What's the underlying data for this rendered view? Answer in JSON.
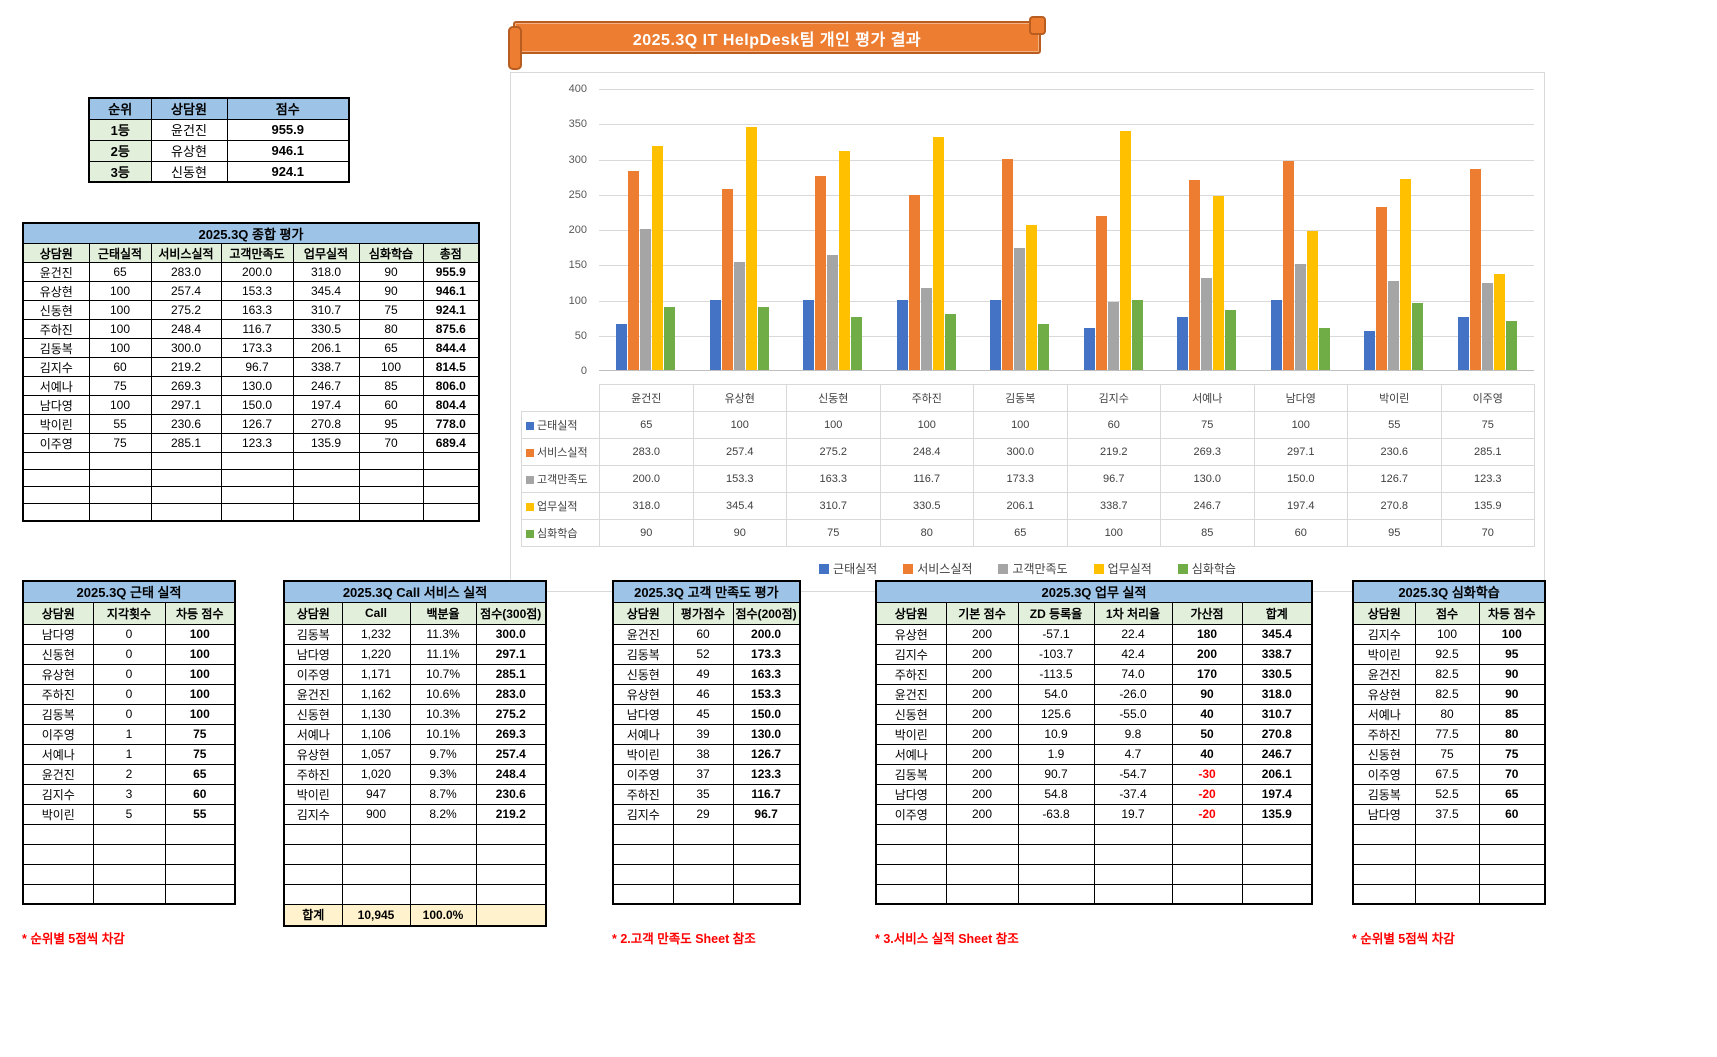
{
  "banner": {
    "title": "2025.3Q IT HelpDesk팀 개인 평가 결과"
  },
  "ranking": {
    "headers": [
      "순위",
      "상담원",
      "점수"
    ],
    "rows": [
      [
        "1등",
        "윤건진",
        "955.9"
      ],
      [
        "2등",
        "유상현",
        "946.1"
      ],
      [
        "3등",
        "신동현",
        "924.1"
      ]
    ]
  },
  "summary": {
    "title": "2025.3Q 종합 평가",
    "headers": [
      "상담원",
      "근태실적",
      "서비스실적",
      "고객만족도",
      "업무실적",
      "심화학습",
      "총점"
    ],
    "rows": [
      [
        "윤건진",
        "65",
        "283.0",
        "200.0",
        "318.0",
        "90",
        "955.9"
      ],
      [
        "유상현",
        "100",
        "257.4",
        "153.3",
        "345.4",
        "90",
        "946.1"
      ],
      [
        "신동현",
        "100",
        "275.2",
        "163.3",
        "310.7",
        "75",
        "924.1"
      ],
      [
        "주하진",
        "100",
        "248.4",
        "116.7",
        "330.5",
        "80",
        "875.6"
      ],
      [
        "김동복",
        "100",
        "300.0",
        "173.3",
        "206.1",
        "65",
        "844.4"
      ],
      [
        "김지수",
        "60",
        "219.2",
        "96.7",
        "338.7",
        "100",
        "814.5"
      ],
      [
        "서예나",
        "75",
        "269.3",
        "130.0",
        "246.7",
        "85",
        "806.0"
      ],
      [
        "남다영",
        "100",
        "297.1",
        "150.0",
        "197.4",
        "60",
        "804.4"
      ],
      [
        "박이린",
        "55",
        "230.6",
        "126.7",
        "270.8",
        "95",
        "778.0"
      ],
      [
        "이주영",
        "75",
        "285.1",
        "123.3",
        "135.9",
        "70",
        "689.4"
      ]
    ],
    "empty_rows": 4
  },
  "chart_data": {
    "type": "bar",
    "title": "",
    "categories": [
      "윤건진",
      "유상현",
      "신동현",
      "주하진",
      "김동복",
      "김지수",
      "서예나",
      "남다영",
      "박이린",
      "이주영"
    ],
    "series": [
      {
        "name": "근태실적",
        "color": "#4472C4",
        "values": [
          65,
          100,
          100,
          100,
          100,
          60,
          75,
          100,
          55,
          75
        ],
        "labels": [
          "65",
          "100",
          "100",
          "100",
          "100",
          "60",
          "75",
          "100",
          "55",
          "75"
        ]
      },
      {
        "name": "서비스실적",
        "color": "#ED7D31",
        "values": [
          283.0,
          257.4,
          275.2,
          248.4,
          300.0,
          219.2,
          269.3,
          297.1,
          230.6,
          285.1
        ],
        "labels": [
          "283.0",
          "257.4",
          "275.2",
          "248.4",
          "300.0",
          "219.2",
          "269.3",
          "297.1",
          "230.6",
          "285.1"
        ]
      },
      {
        "name": "고객만족도",
        "color": "#A5A5A5",
        "values": [
          200.0,
          153.3,
          163.3,
          116.7,
          173.3,
          96.7,
          130.0,
          150.0,
          126.7,
          123.3
        ],
        "labels": [
          "200.0",
          "153.3",
          "163.3",
          "116.7",
          "173.3",
          "96.7",
          "130.0",
          "150.0",
          "126.7",
          "123.3"
        ]
      },
      {
        "name": "업무실적",
        "color": "#FFC000",
        "values": [
          318.0,
          345.4,
          310.7,
          330.5,
          206.1,
          338.7,
          246.7,
          197.4,
          270.8,
          135.9
        ],
        "labels": [
          "318.0",
          "345.4",
          "310.7",
          "330.5",
          "206.1",
          "338.7",
          "246.7",
          "197.4",
          "270.8",
          "135.9"
        ]
      },
      {
        "name": "심화학습",
        "color": "#70AD47",
        "values": [
          90,
          90,
          75,
          80,
          65,
          100,
          85,
          60,
          95,
          70
        ],
        "labels": [
          "90",
          "90",
          "75",
          "80",
          "65",
          "100",
          "85",
          "60",
          "95",
          "70"
        ]
      }
    ],
    "ylim": [
      0,
      400
    ],
    "ytick_step": 50,
    "grid": true,
    "legend_position": "bottom",
    "data_table_shown": true
  },
  "attendance": {
    "title": "2025.3Q 근태 실적",
    "headers": [
      "상담원",
      "지각횟수",
      "차등 점수"
    ],
    "rows": [
      [
        "남다영",
        "0",
        "100"
      ],
      [
        "신동현",
        "0",
        "100"
      ],
      [
        "유상현",
        "0",
        "100"
      ],
      [
        "주하진",
        "0",
        "100"
      ],
      [
        "김동복",
        "0",
        "100"
      ],
      [
        "이주영",
        "1",
        "75"
      ],
      [
        "서예나",
        "1",
        "75"
      ],
      [
        "윤건진",
        "2",
        "65"
      ],
      [
        "김지수",
        "3",
        "60"
      ],
      [
        "박이린",
        "5",
        "55"
      ]
    ],
    "empty_rows": 4,
    "footnote": "* 순위별 5점씩 차감"
  },
  "call": {
    "title": "2025.3Q Call 서비스 실적",
    "headers": [
      "상담원",
      "Call",
      "백분율",
      "점수(300점)"
    ],
    "rows": [
      [
        "김동복",
        "1,232",
        "11.3%",
        "300.0"
      ],
      [
        "남다영",
        "1,220",
        "11.1%",
        "297.1"
      ],
      [
        "이주영",
        "1,171",
        "10.7%",
        "285.1"
      ],
      [
        "윤건진",
        "1,162",
        "10.6%",
        "283.0"
      ],
      [
        "신동현",
        "1,130",
        "10.3%",
        "275.2"
      ],
      [
        "서예나",
        "1,106",
        "10.1%",
        "269.3"
      ],
      [
        "유상현",
        "1,057",
        "9.7%",
        "257.4"
      ],
      [
        "주하진",
        "1,020",
        "9.3%",
        "248.4"
      ],
      [
        "박이린",
        "947",
        "8.7%",
        "230.6"
      ],
      [
        "김지수",
        "900",
        "8.2%",
        "219.2"
      ]
    ],
    "empty_rows": 4,
    "total_row": [
      "합계",
      "10,945",
      "100.0%",
      ""
    ]
  },
  "satisfaction": {
    "title": "2025.3Q 고객 만족도 평가",
    "headers": [
      "상담원",
      "평가점수",
      "점수(200점)"
    ],
    "rows": [
      [
        "윤건진",
        "60",
        "200.0"
      ],
      [
        "김동복",
        "52",
        "173.3"
      ],
      [
        "신동현",
        "49",
        "163.3"
      ],
      [
        "유상현",
        "46",
        "153.3"
      ],
      [
        "남다영",
        "45",
        "150.0"
      ],
      [
        "서예나",
        "39",
        "130.0"
      ],
      [
        "박이린",
        "38",
        "126.7"
      ],
      [
        "이주영",
        "37",
        "123.3"
      ],
      [
        "주하진",
        "35",
        "116.7"
      ],
      [
        "김지수",
        "29",
        "96.7"
      ]
    ],
    "empty_rows": 4,
    "footnote": "* 2.고객 만족도 Sheet 참조"
  },
  "work": {
    "title": "2025.3Q 업무 실적",
    "headers": [
      "상담원",
      "기본 점수",
      "ZD 등록율",
      "1차 처리율",
      "가산점",
      "합계"
    ],
    "rows": [
      [
        "유상현",
        "200",
        "-57.1",
        "22.4",
        "180",
        "345.4"
      ],
      [
        "김지수",
        "200",
        "-103.7",
        "42.4",
        "200",
        "338.7"
      ],
      [
        "주하진",
        "200",
        "-113.5",
        "74.0",
        "170",
        "330.5"
      ],
      [
        "윤건진",
        "200",
        "54.0",
        "-26.0",
        "90",
        "318.0"
      ],
      [
        "신동현",
        "200",
        "125.6",
        "-55.0",
        "40",
        "310.7"
      ],
      [
        "박이린",
        "200",
        "10.9",
        "9.8",
        "50",
        "270.8"
      ],
      [
        "서예나",
        "200",
        "1.9",
        "4.7",
        "40",
        "246.7"
      ],
      [
        "김동복",
        "200",
        "90.7",
        "-54.7",
        "-30",
        "206.1"
      ],
      [
        "남다영",
        "200",
        "54.8",
        "-37.4",
        "-20",
        "197.4"
      ],
      [
        "이주영",
        "200",
        "-63.8",
        "19.7",
        "-20",
        "135.9"
      ]
    ],
    "empty_rows": 4,
    "footnote": "* 3.서비스 실적 Sheet 참조"
  },
  "learning": {
    "title": "2025.3Q 심화학습",
    "headers": [
      "상담원",
      "점수",
      "차등 점수"
    ],
    "rows": [
      [
        "김지수",
        "100",
        "100"
      ],
      [
        "박이린",
        "92.5",
        "95"
      ],
      [
        "윤건진",
        "82.5",
        "90"
      ],
      [
        "유상현",
        "82.5",
        "90"
      ],
      [
        "서예나",
        "80",
        "85"
      ],
      [
        "주하진",
        "77.5",
        "80"
      ],
      [
        "신동현",
        "75",
        "75"
      ],
      [
        "이주영",
        "67.5",
        "70"
      ],
      [
        "김동복",
        "52.5",
        "65"
      ],
      [
        "남다영",
        "37.5",
        "60"
      ]
    ],
    "empty_rows": 4,
    "footnote": "* 순위별 5점씩 차감"
  }
}
